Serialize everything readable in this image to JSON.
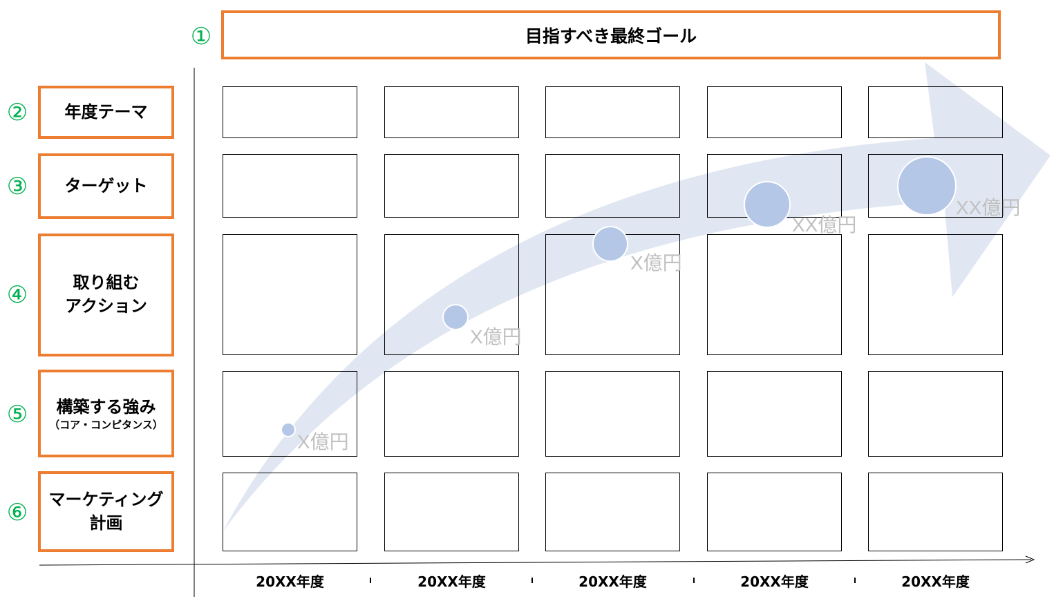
{
  "goal": {
    "number": "①",
    "label": "目指すべき最終ゴール"
  },
  "rows": [
    {
      "number": "②",
      "label": "年度テーマ",
      "sub": ""
    },
    {
      "number": "③",
      "label": "ターゲット",
      "sub": ""
    },
    {
      "number": "④",
      "label": "取り組む\nアクション",
      "sub": ""
    },
    {
      "number": "⑤",
      "label": "構築する強み",
      "sub": "（コア・コンピタンス）"
    },
    {
      "number": "⑥",
      "label": "マーケティング\n計画",
      "sub": ""
    }
  ],
  "years": [
    "20XX年度",
    "20XX年度",
    "20XX年度",
    "20XX年度",
    "20XX年度"
  ],
  "milestones": [
    {
      "year_index": 0,
      "label": "X億円"
    },
    {
      "year_index": 1,
      "label": "X億円"
    },
    {
      "year_index": 2,
      "label": "X億円"
    },
    {
      "year_index": 3,
      "label": "XX億円"
    },
    {
      "year_index": 4,
      "label": "XX億円"
    }
  ],
  "colors": {
    "box_border": "#ED7D31",
    "step_number": "#00B050",
    "arrow_fill": "#DCE3F0",
    "bubble_fill": "#B4C7E7",
    "value_text": "#C0C0C0"
  }
}
